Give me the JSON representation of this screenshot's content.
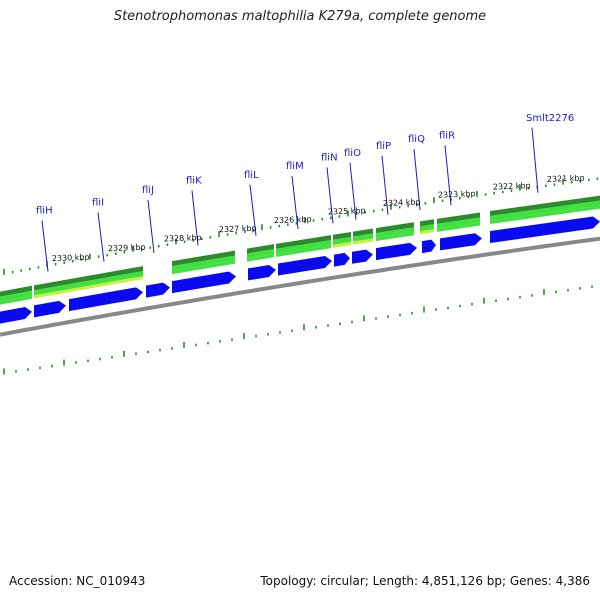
{
  "title": "Stenotrophomonas maltophilia K279a, complete genome",
  "footer": {
    "accession": "Accession: NC_010943",
    "topology": "Topology: circular; Length: 4,851,126 bp; Genes: 4,386"
  },
  "kbp_labels": [
    "2330 kbp",
    "2329 kbp",
    "2328 kbp",
    "2327 kbp",
    "2326 kbp",
    "2325 kbp",
    "2324 kbp",
    "2323 kbp",
    "2322 kbp",
    "2321 kbp"
  ],
  "gene_labels": [
    "fliH",
    "fliI",
    "fliJ",
    "fliK",
    "fliL",
    "fliM",
    "fliN",
    "fliO",
    "fliP",
    "fliQ",
    "fliR",
    "Smlt2276"
  ],
  "colors": {
    "cds": "#0a0af0",
    "dark_green": "#2d8a2d",
    "light_green": "#40e040",
    "yellow_green": "#c8f040",
    "tick": "#2a8a2a",
    "backbone": "#888888"
  }
}
